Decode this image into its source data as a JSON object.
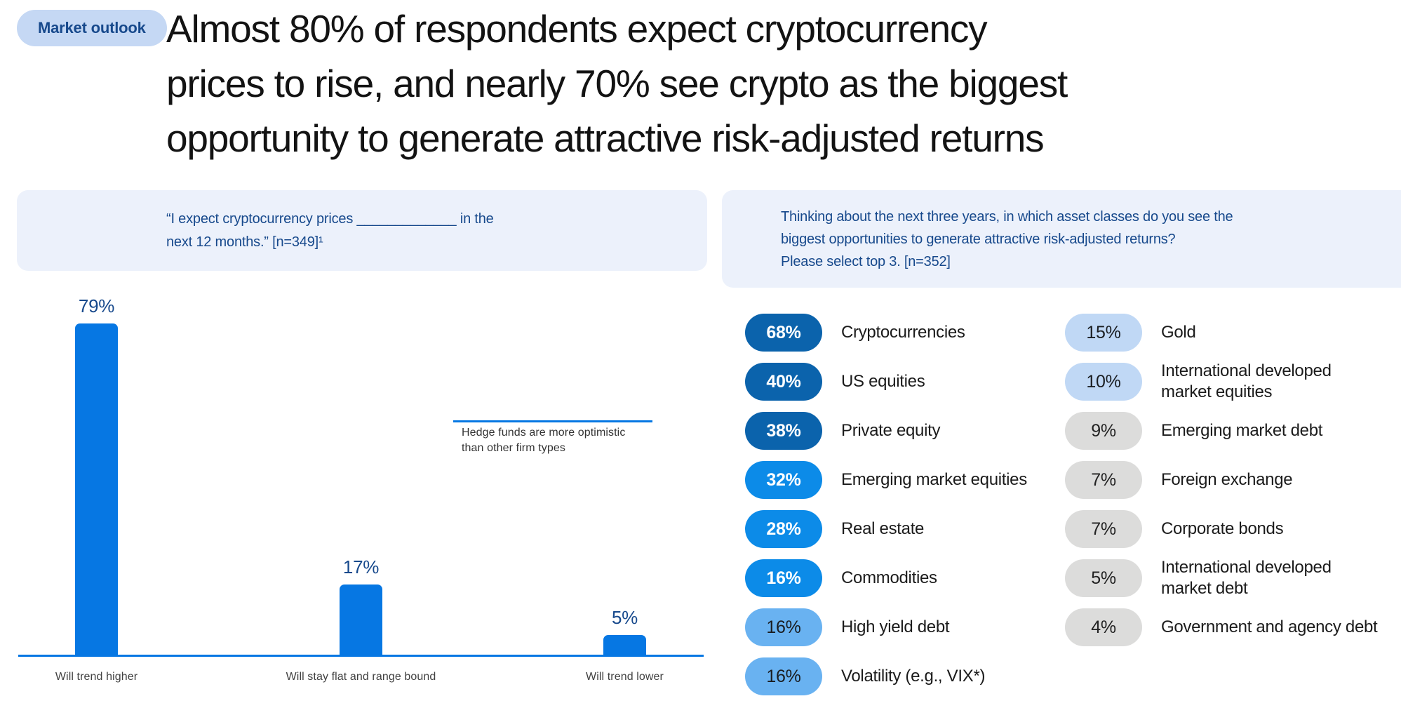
{
  "header": {
    "badge": "Market outlook",
    "title": "Almost 80% of respondents expect cryptocurrency\nprices to rise, and nearly 70% see crypto as the biggest\nopportunity to generate attractive risk-adjusted returns"
  },
  "left_panel": {
    "question": "“I expect cryptocurrency prices _____________ in the\nnext 12 months.” [n=349]¹"
  },
  "right_panel": {
    "question": "Thinking about the next three years, in which asset classes do you see the\nbiggest opportunities to generate attractive risk-adjusted returns?\nPlease select top 3. [n=352]"
  },
  "chart_data": [
    {
      "type": "bar",
      "title": "“I expect cryptocurrency prices _____________ in the next 12 months.” [n=349]¹",
      "categories": [
        "Will trend higher",
        "Will stay flat and range bound",
        "Will trend lower"
      ],
      "values": [
        79,
        17,
        5
      ],
      "value_labels": [
        "79%",
        "17%",
        "5%"
      ],
      "unit": "%",
      "ylim": [
        0,
        100
      ],
      "grid": "off",
      "axis": "baseline-only",
      "annotation": "Hedge funds are more optimistic\nthan other firm types",
      "bar_color": "#0677E3"
    },
    {
      "type": "table",
      "title": "Biggest opportunities for attractive risk-adjusted returns (top 3, next three years) [n=352]",
      "columns": [
        {
          "items": [
            {
              "value": "68%",
              "label": "Cryptocurrencies",
              "tier": "dark"
            },
            {
              "value": "40%",
              "label": "US equities",
              "tier": "dark"
            },
            {
              "value": "38%",
              "label": "Private equity",
              "tier": "dark"
            },
            {
              "value": "32%",
              "label": "Emerging market equities",
              "tier": "bright"
            },
            {
              "value": "28%",
              "label": "Real estate",
              "tier": "bright"
            },
            {
              "value": "16%",
              "label": "Commodities",
              "tier": "bright"
            },
            {
              "value": "16%",
              "label": "High yield debt",
              "tier": "light"
            },
            {
              "value": "16%",
              "label": "Volatility (e.g., VIX*)",
              "tier": "light"
            }
          ]
        },
        {
          "items": [
            {
              "value": "15%",
              "label": "Gold",
              "tier": "pale"
            },
            {
              "value": "10%",
              "label": "International developed\nmarket equities",
              "tier": "pale"
            },
            {
              "value": "9%",
              "label": "Emerging market debt",
              "tier": "gray"
            },
            {
              "value": "7%",
              "label": "Foreign exchange",
              "tier": "gray"
            },
            {
              "value": "7%",
              "label": "Corporate bonds",
              "tier": "gray"
            },
            {
              "value": "5%",
              "label": "International developed\nmarket debt",
              "tier": "gray"
            },
            {
              "value": "4%",
              "label": "Government and agency debt",
              "tier": "gray"
            }
          ]
        }
      ]
    }
  ],
  "colors": {
    "badge_bg": "#C5D8F4",
    "navy_text": "#17498C",
    "headline_text": "#131313",
    "question_box_bg": "#ECF1FB",
    "bar_blue": "#0677E3",
    "pill_dark_blue": "#0B63AC",
    "pill_bright_blue": "#0C8BE8",
    "pill_light_blue": "#69B2F1",
    "pill_pale_blue": "#C0D8F5",
    "pill_gray": "#DCDCDB",
    "category_label": "#414141",
    "annotation_text": "#333333"
  }
}
